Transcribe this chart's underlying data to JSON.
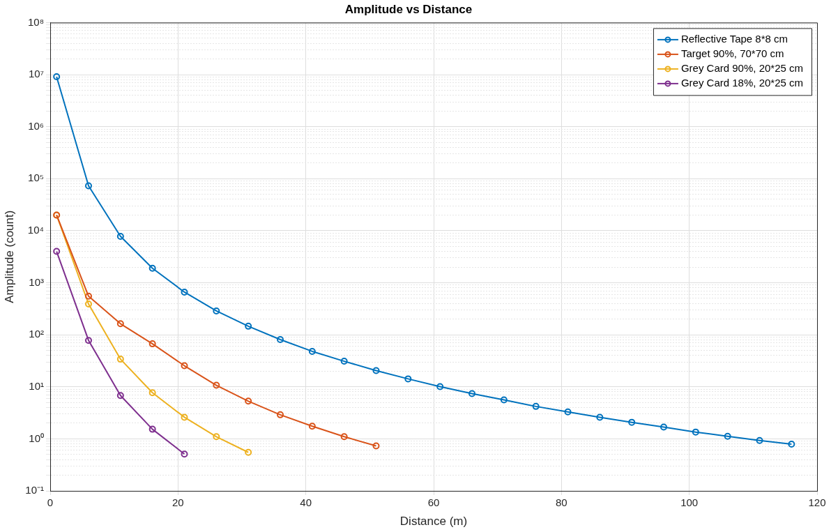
{
  "chart_data": {
    "type": "line",
    "title": "Amplitude vs Distance",
    "xlabel": "Distance (m)",
    "ylabel": "Amplitude (count)",
    "xlim": [
      0,
      120
    ],
    "xticks": [
      0,
      20,
      40,
      60,
      80,
      100,
      120
    ],
    "ylim": [
      0.1,
      100000000
    ],
    "log": "y",
    "yticks": [
      {
        "value": 0.1,
        "label": "10⁻¹"
      },
      {
        "value": 1,
        "label": "10⁰"
      },
      {
        "value": 10,
        "label": "10¹"
      },
      {
        "value": 100,
        "label": "10²"
      },
      {
        "value": 1000,
        "label": "10³"
      },
      {
        "value": 10000,
        "label": "10⁴"
      },
      {
        "value": 100000,
        "label": "10⁵"
      },
      {
        "value": 1000000,
        "label": "10⁶"
      },
      {
        "value": 10000000,
        "label": "10⁷"
      },
      {
        "value": 100000000,
        "label": "10⁸"
      }
    ],
    "grid": true,
    "legend": "top right",
    "marker": "circle",
    "line_style": "solid",
    "series": [
      {
        "name": "Reflective Tape 8*8 cm",
        "color": "#0072bd",
        "x": [
          1,
          6,
          11,
          16,
          21,
          26,
          31,
          36,
          41,
          46,
          51,
          56,
          61,
          66,
          71,
          76,
          81,
          86,
          91,
          96,
          101,
          106,
          111,
          116
        ],
        "values": [
          9100000,
          73000,
          7800,
          1900,
          660,
          287,
          146,
          81,
          48,
          31,
          20.5,
          14.2,
          10.1,
          7.4,
          5.6,
          4.2,
          3.3,
          2.6,
          2.08,
          1.68,
          1.35,
          1.12,
          0.93,
          0.79
        ]
      },
      {
        "name": "Target 90%, 70*70 cm",
        "color": "#d95319",
        "x": [
          1,
          6,
          11,
          16,
          21,
          26,
          31,
          36,
          41,
          46,
          51
        ],
        "values": [
          20000,
          552,
          163,
          67,
          25.4,
          10.7,
          5.3,
          2.9,
          1.75,
          1.1,
          0.73
        ]
      },
      {
        "name": "Grey Card 90%, 20*25 cm",
        "color": "#edb120",
        "x": [
          1,
          6,
          11,
          16,
          21,
          26,
          31
        ],
        "values": [
          20000,
          390,
          34,
          7.7,
          2.6,
          1.1,
          0.55
        ]
      },
      {
        "name": "Grey Card 18%, 20*25 cm",
        "color": "#7e2f8e",
        "x": [
          1,
          6,
          11,
          16,
          21
        ],
        "values": [
          4000,
          78,
          6.8,
          1.53,
          0.51
        ]
      }
    ]
  }
}
